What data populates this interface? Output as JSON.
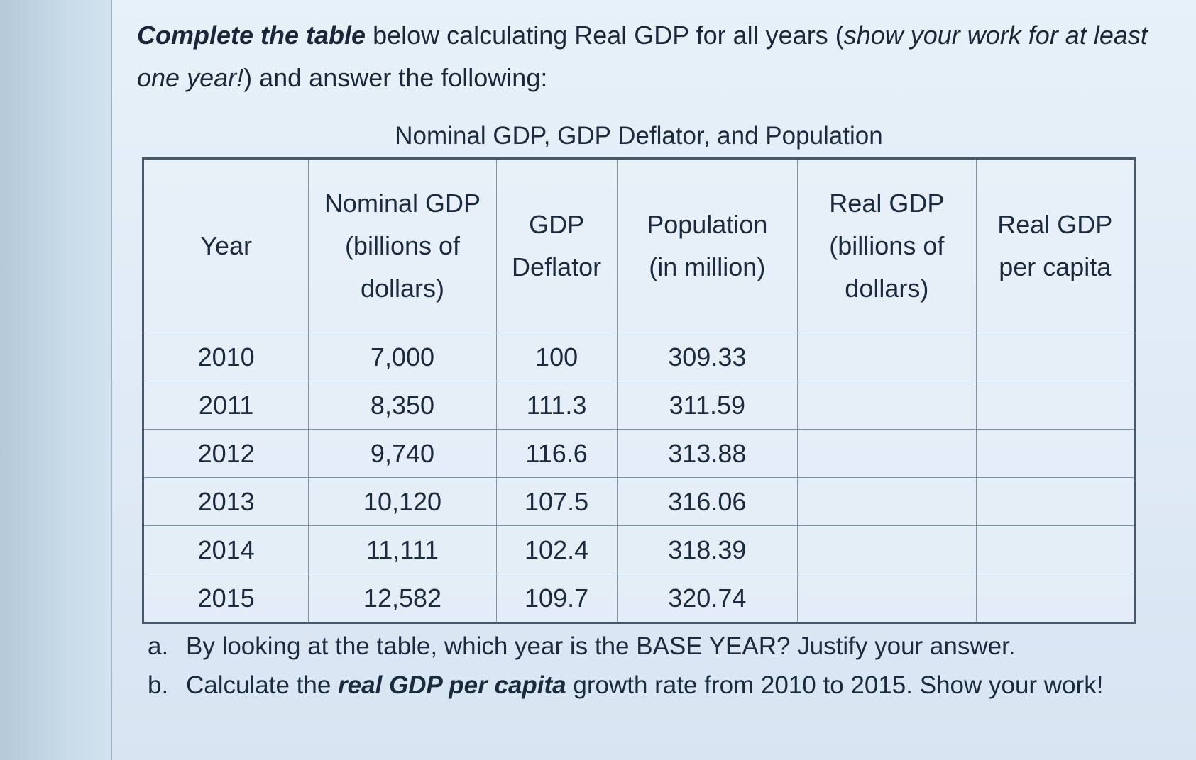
{
  "instructions": {
    "lead": "Complete the table",
    "part1": " below calculating Real GDP for all years (",
    "part2": "show your work for at least one year!",
    "part3": ") and answer the following:"
  },
  "table": {
    "caption": "Nominal GDP, GDP Deflator, and Population",
    "headers": {
      "year": "Year",
      "nominal_gdp": [
        "Nominal GDP",
        "(billions of",
        "dollars)"
      ],
      "gdp_deflator": [
        "GDP",
        "Deflator"
      ],
      "population": [
        "Population",
        "(in million)"
      ],
      "real_gdp": [
        "Real GDP",
        "(billions of",
        "dollars)"
      ],
      "real_gdp_per_capita": [
        "Real GDP",
        "per capita"
      ]
    },
    "rows": [
      {
        "year": "2010",
        "nominal_gdp": "7,000",
        "gdp_deflator": "100",
        "population": "309.33",
        "real_gdp": "",
        "real_gdp_per_capita": ""
      },
      {
        "year": "2011",
        "nominal_gdp": "8,350",
        "gdp_deflator": "111.3",
        "population": "311.59",
        "real_gdp": "",
        "real_gdp_per_capita": ""
      },
      {
        "year": "2012",
        "nominal_gdp": "9,740",
        "gdp_deflator": "116.6",
        "population": "313.88",
        "real_gdp": "",
        "real_gdp_per_capita": ""
      },
      {
        "year": "2013",
        "nominal_gdp": "10,120",
        "gdp_deflator": "107.5",
        "population": "316.06",
        "real_gdp": "",
        "real_gdp_per_capita": ""
      },
      {
        "year": "2014",
        "nominal_gdp": "11,111",
        "gdp_deflator": "102.4",
        "population": "318.39",
        "real_gdp": "",
        "real_gdp_per_capita": ""
      },
      {
        "year": "2015",
        "nominal_gdp": "12,582",
        "gdp_deflator": "109.7",
        "population": "320.74",
        "real_gdp": "",
        "real_gdp_per_capita": ""
      }
    ]
  },
  "questions": {
    "a": {
      "marker": "a.",
      "text": "By looking at the table, which year is the BASE YEAR? Justify your answer."
    },
    "b": {
      "marker": "b.",
      "before": "Calculate the ",
      "emphasis": "real GDP per capita",
      "after": " growth rate from 2010 to 2015. Show your work!"
    }
  }
}
